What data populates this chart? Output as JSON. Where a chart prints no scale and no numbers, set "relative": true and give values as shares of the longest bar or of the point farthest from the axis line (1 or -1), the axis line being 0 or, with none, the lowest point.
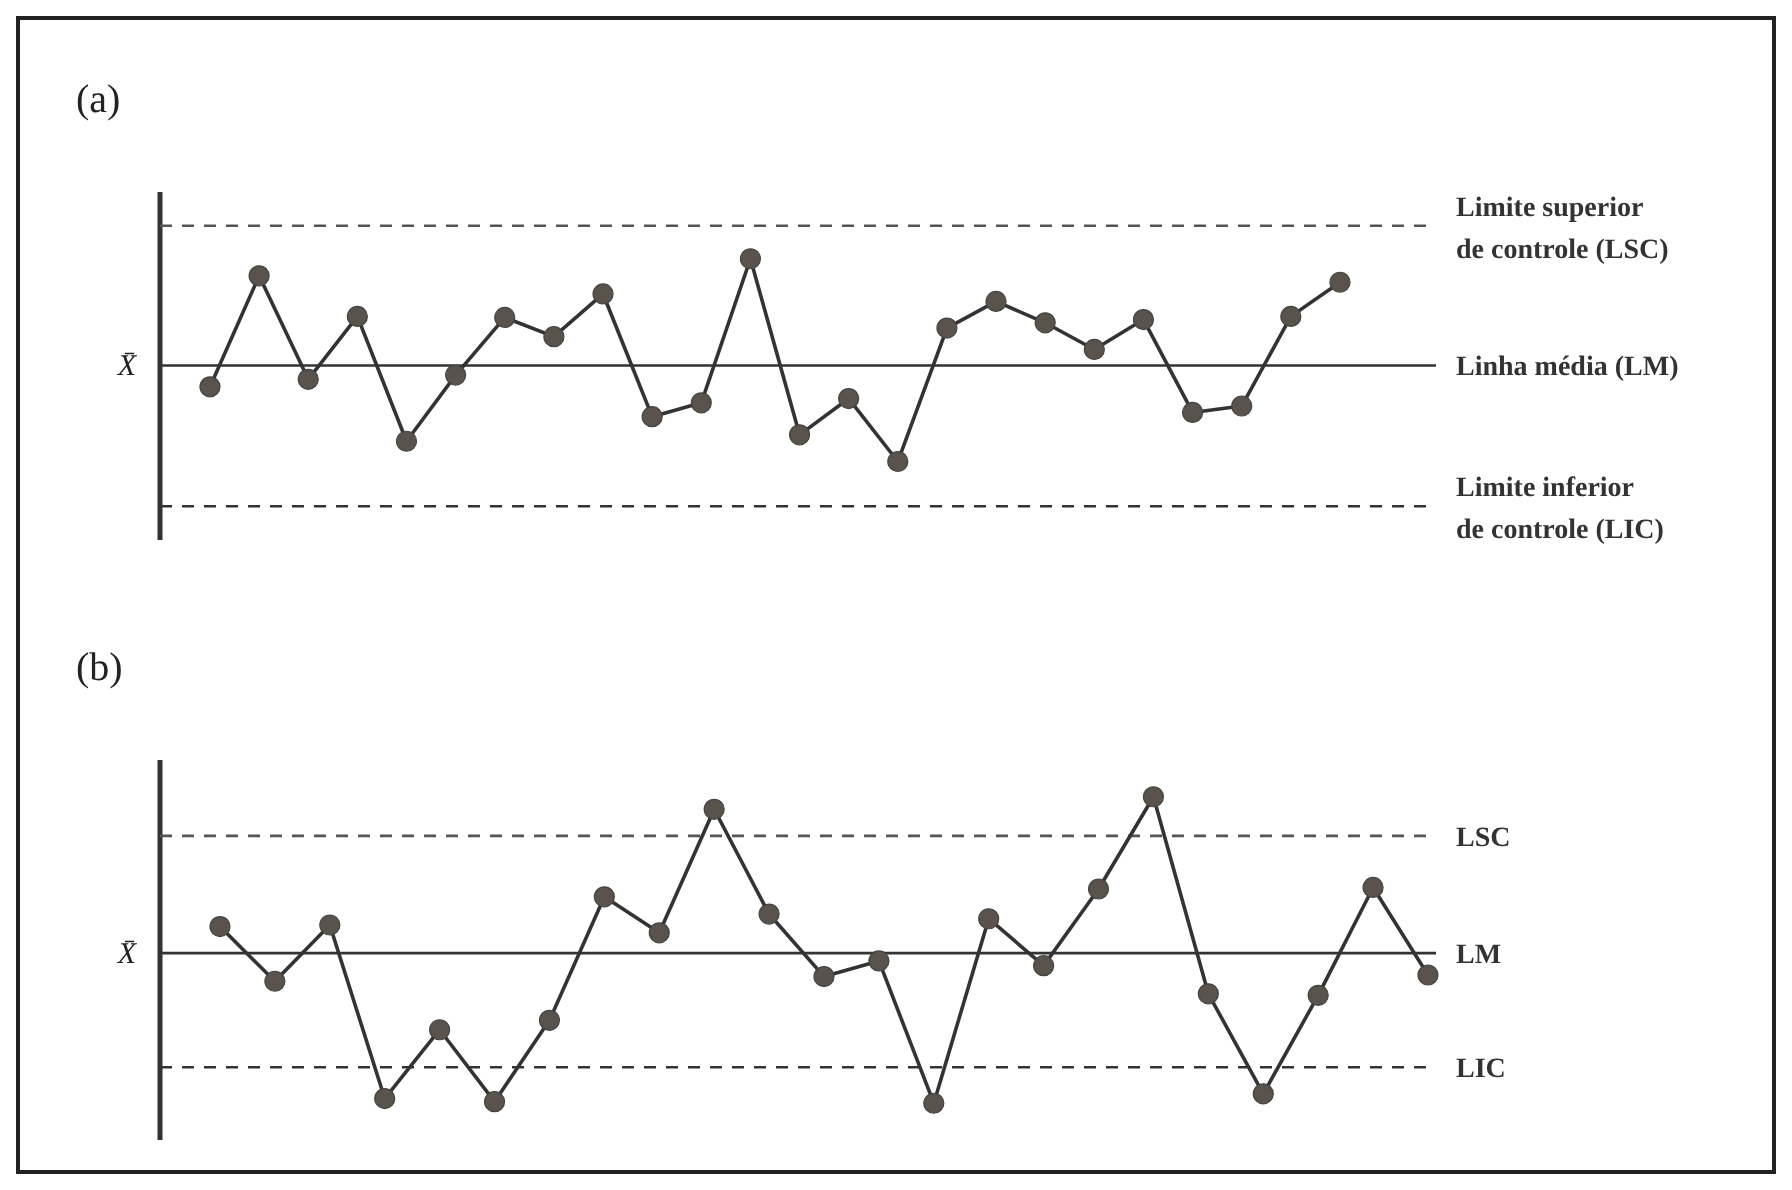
{
  "chart_data": [
    {
      "type": "line",
      "title": "(a)",
      "ylabel": "X̄",
      "relative": true,
      "marker": "circle",
      "line_style": "solid",
      "categories": [
        null,
        null,
        null,
        null,
        null,
        null,
        null,
        null,
        null,
        null,
        null,
        null,
        null,
        null,
        null,
        null,
        null,
        null,
        null,
        null,
        null,
        null,
        null,
        null
      ],
      "series": [
        {
          "color": "#333333",
          "values": [
            -0.2,
            0.84,
            -0.13,
            0.46,
            -0.71,
            -0.09,
            0.45,
            0.27,
            0.67,
            -0.48,
            -0.35,
            1,
            -0.65,
            -0.31,
            -0.9,
            0.35,
            0.6,
            0.4,
            0.15,
            0.43,
            -0.44,
            -0.38,
            0.46,
            0.78
          ]
        }
      ],
      "ref_lines": [
        {
          "axis": "y",
          "value": 1.31,
          "label": "Limite superior\nde controle (LSC)",
          "line_style": "dashed",
          "color": "#555555"
        },
        {
          "axis": "y",
          "value": 0,
          "label": "Linha média (LM)",
          "line_style": "solid",
          "color": "#333333"
        },
        {
          "axis": "y",
          "value": -1.32,
          "label": "Limite inferior\nde controle (LIC)",
          "line_style": "dashed",
          "color": "#333333"
        }
      ]
    },
    {
      "type": "line",
      "title": "(b)",
      "ylabel": "X̄",
      "relative": true,
      "marker": "circle",
      "line_style": "solid",
      "categories": [
        null,
        null,
        null,
        null,
        null,
        null,
        null,
        null,
        null,
        null,
        null,
        null,
        null,
        null,
        null,
        null,
        null,
        null,
        null,
        null,
        null,
        null,
        null
      ],
      "series": [
        {
          "color": "#333333",
          "values": [
            0.17,
            -0.18,
            0.18,
            -0.93,
            -0.49,
            -0.95,
            -0.43,
            0.36,
            0.13,
            0.92,
            0.25,
            -0.15,
            -0.05,
            -0.96,
            0.22,
            -0.08,
            0.41,
            1,
            -0.26,
            -0.9,
            -0.27,
            0.42,
            -0.14
          ]
        }
      ],
      "ref_lines": [
        {
          "axis": "y",
          "value": 0.75,
          "label": "LSC",
          "line_style": "dashed",
          "color": "#555555"
        },
        {
          "axis": "y",
          "value": 0,
          "label": "LM",
          "line_style": "solid",
          "color": "#333333"
        },
        {
          "axis": "y",
          "value": -0.73,
          "label": "LIC",
          "line_style": "dashed",
          "color": "#333333"
        }
      ]
    }
  ]
}
